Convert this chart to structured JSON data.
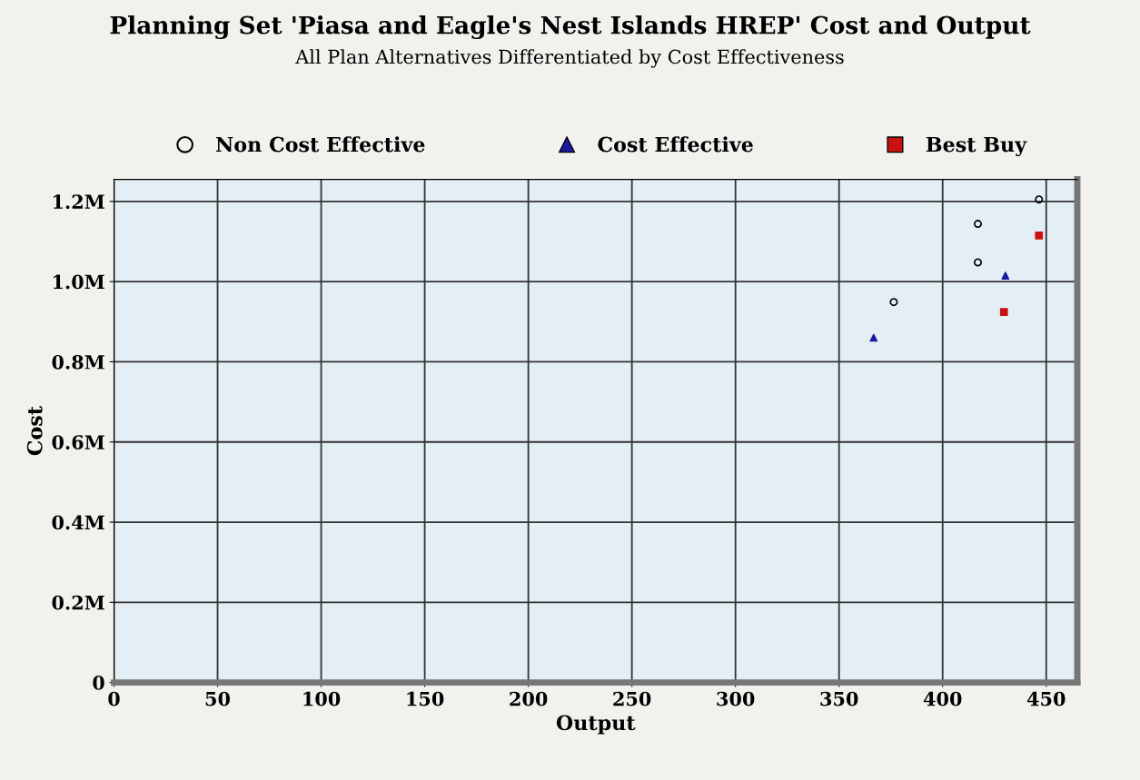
{
  "chart_data": {
    "type": "scatter",
    "title": "Planning Set 'Piasa and Eagle's Nest Islands HREP' Cost and Output",
    "subtitle": "All Plan Alternatives Differentiated by Cost Effectiveness",
    "xlabel": "Output",
    "ylabel": "Cost",
    "series": [
      {
        "name": "Non Cost Effective",
        "color": "#000000",
        "marker": "circle",
        "x": [
          446.5,
          417,
          417,
          376.4
        ],
        "values": [
          1205000,
          1144000,
          1048000,
          949000
        ]
      },
      {
        "name": "Cost Effective",
        "color": "#1a1aa0",
        "marker": "triangle",
        "x": [
          430.3,
          366.7
        ],
        "values": [
          1015000,
          860000
        ]
      },
      {
        "name": "Best Buy",
        "color": "#cc1111",
        "marker": "square",
        "x": [
          446.5,
          429.6
        ],
        "values": [
          1115000,
          924000
        ]
      }
    ],
    "xlim": [
      0,
      465
    ],
    "xticks": [
      0,
      50,
      100,
      150,
      200,
      250,
      300,
      350,
      400,
      450
    ],
    "ylim": [
      0,
      1255000
    ],
    "yticks": [
      {
        "value": 0,
        "label": "0"
      },
      {
        "value": 200000,
        "label": "0.2M"
      },
      {
        "value": 400000,
        "label": "0.4M"
      },
      {
        "value": 600000,
        "label": "0.6M"
      },
      {
        "value": 800000,
        "label": "0.8M"
      },
      {
        "value": 1000000,
        "label": "1.0M"
      },
      {
        "value": 1200000,
        "label": "1.2M"
      }
    ],
    "grid": true,
    "legend": "top"
  }
}
